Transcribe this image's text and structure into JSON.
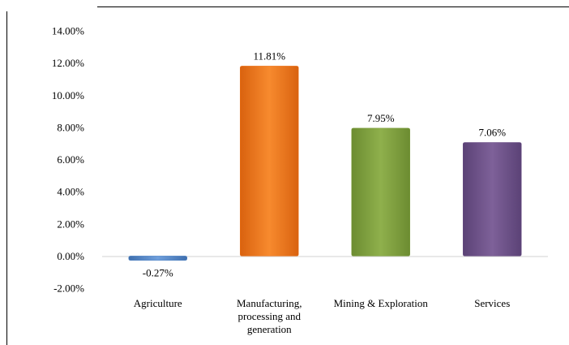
{
  "chart_data": {
    "type": "bar",
    "categories": [
      [
        "Agriculture"
      ],
      [
        "Manufacturing,",
        "processing and",
        "generation"
      ],
      [
        "Mining & Exploration"
      ],
      [
        "Services"
      ]
    ],
    "values": [
      -0.27,
      11.81,
      7.95,
      7.06
    ],
    "data_labels": [
      "-0.27%",
      "11.81%",
      "7.95%",
      "7.06%"
    ],
    "colors": [
      "#4a7fc1",
      "#ef7318",
      "#7d9e3e",
      "#6b4f86"
    ],
    "ylim": [
      -2,
      14
    ],
    "yticks": [
      "14.00%",
      "12.00%",
      "10.00%",
      "8.00%",
      "6.00%",
      "4.00%",
      "2.00%",
      "0.00%",
      "-2.00%"
    ],
    "grid": false,
    "legend": "none"
  }
}
